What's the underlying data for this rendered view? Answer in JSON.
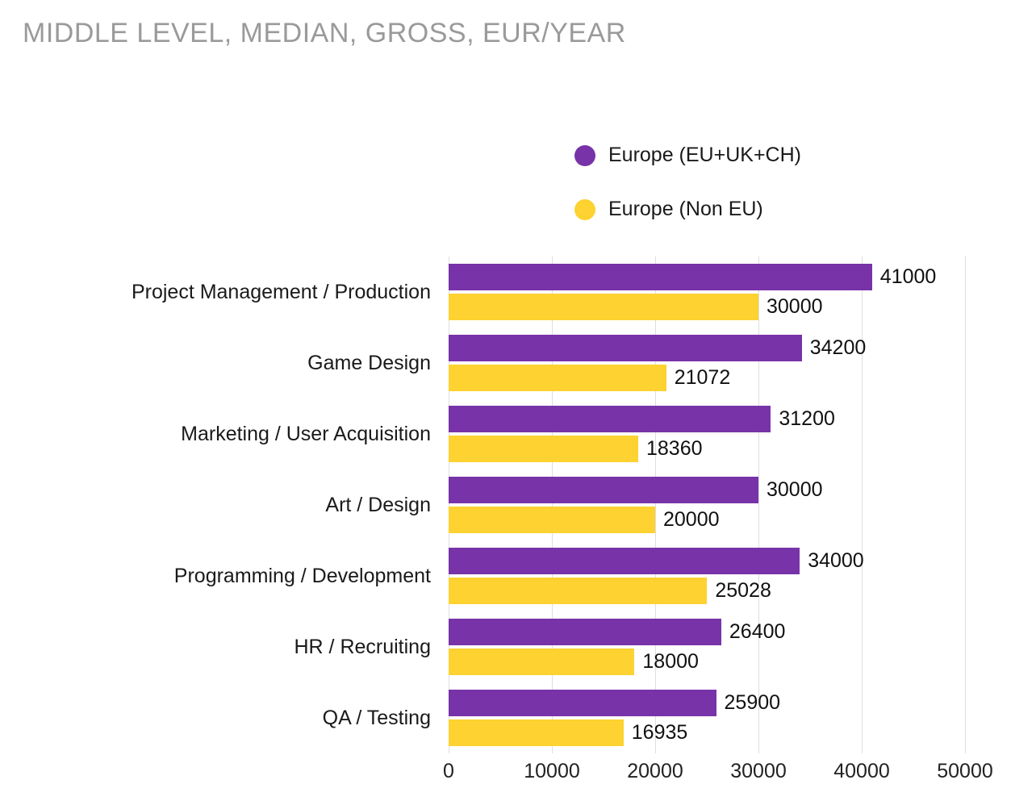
{
  "title": "MIDDLE LEVEL, MEDIAN, GROSS, EUR/YEAR",
  "colors": {
    "series_purple": "#7833A8",
    "series_yellow": "#FDD231",
    "gridline": "#DEDEDE",
    "title_text": "#9A9A9A",
    "label_text": "#1A1A1A"
  },
  "legend": [
    {
      "label": "Europe (EU+UK+CH)",
      "color": "#7833A8"
    },
    {
      "label": "Europe (Non EU)",
      "color": "#FDD231"
    }
  ],
  "chart_data": {
    "type": "bar",
    "orientation": "horizontal",
    "title": "MIDDLE LEVEL, MEDIAN, GROSS, EUR/YEAR",
    "xlabel": "",
    "ylabel": "",
    "xlim": [
      0,
      50000
    ],
    "x_ticks": [
      0,
      10000,
      20000,
      30000,
      40000,
      50000
    ],
    "grid": true,
    "legend_position": "top-right",
    "categories": [
      "Project Management / Production",
      "Game Design",
      "Marketing / User Acquisition",
      "Art / Design",
      "Programming / Development",
      "HR / Recruiting",
      "QA / Testing"
    ],
    "series": [
      {
        "name": "Europe (EU+UK+CH)",
        "color": "#7833A8",
        "values": [
          41000,
          34200,
          31200,
          30000,
          34000,
          26400,
          25900
        ]
      },
      {
        "name": "Europe (Non EU)",
        "color": "#FDD231",
        "values": [
          30000,
          21072,
          18360,
          20000,
          25028,
          18000,
          16935
        ]
      }
    ]
  }
}
